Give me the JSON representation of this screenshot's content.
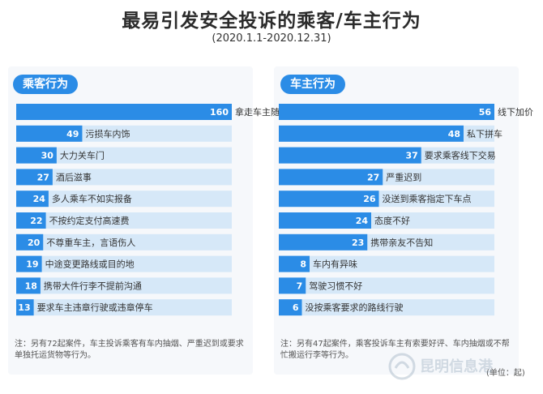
{
  "title": "最易引发安全投诉的乘客/车主行为",
  "subtitle": "(2020.1.1-2020.12.31)",
  "colors": {
    "bar": "#2b8ce6",
    "label_fill": "#d6e8f8",
    "panel_bg": "#f6f8fb"
  },
  "chart_data": [
    {
      "type": "bar",
      "orientation": "horizontal",
      "title": "乘客行为",
      "xlim": [
        0,
        160
      ],
      "values": [
        160,
        49,
        30,
        27,
        24,
        22,
        20,
        19,
        18,
        13
      ],
      "categories": [
        "拿走车主随用物品",
        "污损车内饰",
        "大力关车门",
        "酒后滋事",
        "多人乘车不如实报备",
        "不按约定支付高速费",
        "不尊重车主，言语伤人",
        "中途变更路线或目的地",
        "携带大件行李不提前沟通",
        "要求车主违章行驶或违章停车"
      ]
    },
    {
      "type": "bar",
      "orientation": "horizontal",
      "title": "车主行为",
      "xlim": [
        0,
        56
      ],
      "values": [
        56,
        48,
        37,
        27,
        26,
        24,
        23,
        8,
        7,
        6
      ],
      "categories": [
        "线下加价",
        "私下拼车",
        "要求乘客线下交易",
        "严重迟到",
        "没送到乘客指定下车点",
        "态度不好",
        "携带亲友不告知",
        "车内有异味",
        "驾驶习惯不好",
        "没按乘客要求的路线行驶"
      ]
    }
  ],
  "notes": {
    "left": "注：另有72起案件，车主投诉乘客有车内抽烟、严重迟到或要求单独托运货物等行为。",
    "right": "注：另有47起案件，乘客投诉车主有索要好评、车内抽烟或不帮忙搬运行李等行为。"
  },
  "unit": "(单位：起)",
  "watermark": "昆明信息港"
}
